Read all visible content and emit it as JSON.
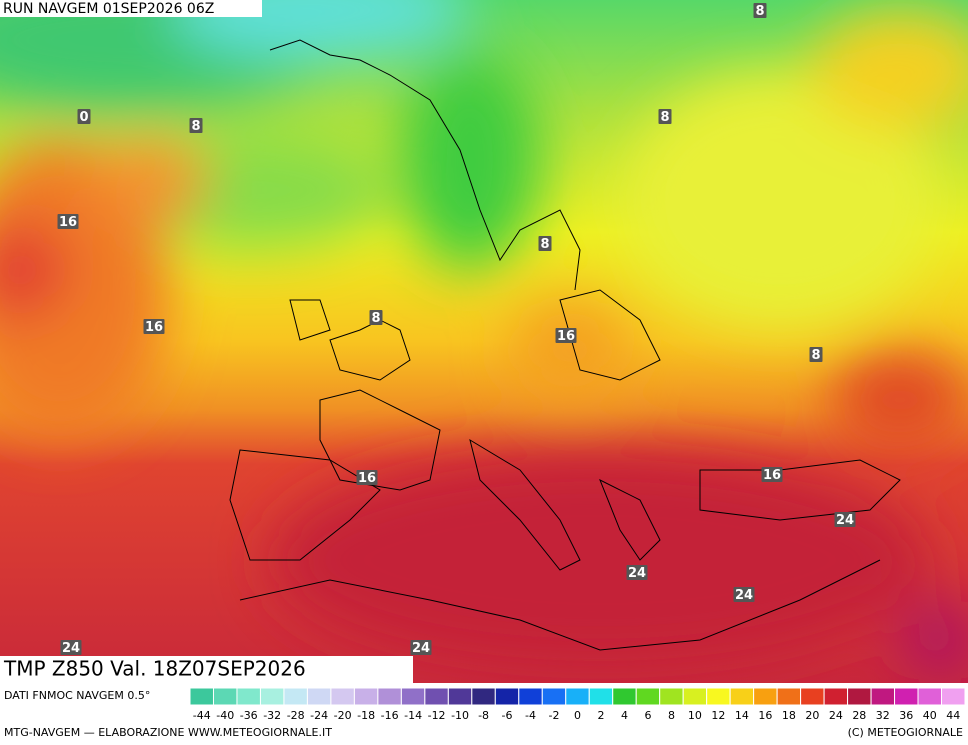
{
  "header": {
    "run": "RUN NAVGEM 01SEP2026 06Z"
  },
  "map": {
    "contour_labels": [
      "0",
      "8",
      "8",
      "8",
      "16",
      "16",
      "8",
      "8",
      "16",
      "8",
      "16",
      "16",
      "24",
      "24",
      "24",
      "24",
      "24"
    ]
  },
  "footer": {
    "field": "TMP Z850 Val. 18Z07SEP2026",
    "source": "DATI FNMOC NAVGEM 0.5°",
    "credit": "MTG-NAVGEM — ELABORAZIONE WWW.METEOGIORNALE.IT",
    "copyright": "(C) METEOGIORNALE",
    "scale": [
      {
        "label": "-44",
        "color": "#3cc89c"
      },
      {
        "label": "-40",
        "color": "#5cd8b4"
      },
      {
        "label": "-36",
        "color": "#80e8cc"
      },
      {
        "label": "-32",
        "color": "#a8f0e0"
      },
      {
        "label": "-28",
        "color": "#c4e8f4"
      },
      {
        "label": "-24",
        "color": "#cfd8f4"
      },
      {
        "label": "-20",
        "color": "#d4c8f0"
      },
      {
        "label": "-18",
        "color": "#c8b0e8"
      },
      {
        "label": "-16",
        "color": "#b090d8"
      },
      {
        "label": "-14",
        "color": "#9070c8"
      },
      {
        "label": "-12",
        "color": "#7050b0"
      },
      {
        "label": "-10",
        "color": "#503898"
      },
      {
        "label": "-8",
        "color": "#302880"
      },
      {
        "label": "-6",
        "color": "#1424a8"
      },
      {
        "label": "-4",
        "color": "#1040d8"
      },
      {
        "label": "-2",
        "color": "#1870f4"
      },
      {
        "label": "0",
        "color": "#18b0f8"
      },
      {
        "label": "2",
        "color": "#20e0e8"
      },
      {
        "label": "4",
        "color": "#30c830"
      },
      {
        "label": "6",
        "color": "#60d820"
      },
      {
        "label": "8",
        "color": "#a0e420"
      },
      {
        "label": "10",
        "color": "#d8f020"
      },
      {
        "label": "12",
        "color": "#f8f820"
      },
      {
        "label": "14",
        "color": "#f8d018"
      },
      {
        "label": "16",
        "color": "#f8a010"
      },
      {
        "label": "18",
        "color": "#f07018"
      },
      {
        "label": "20",
        "color": "#e84020"
      },
      {
        "label": "24",
        "color": "#d02030"
      },
      {
        "label": "28",
        "color": "#b01840"
      },
      {
        "label": "32",
        "color": "#c01880"
      },
      {
        "label": "36",
        "color": "#d020b0"
      },
      {
        "label": "40",
        "color": "#e060d8"
      },
      {
        "label": "44",
        "color": "#f0a0f0"
      }
    ]
  }
}
